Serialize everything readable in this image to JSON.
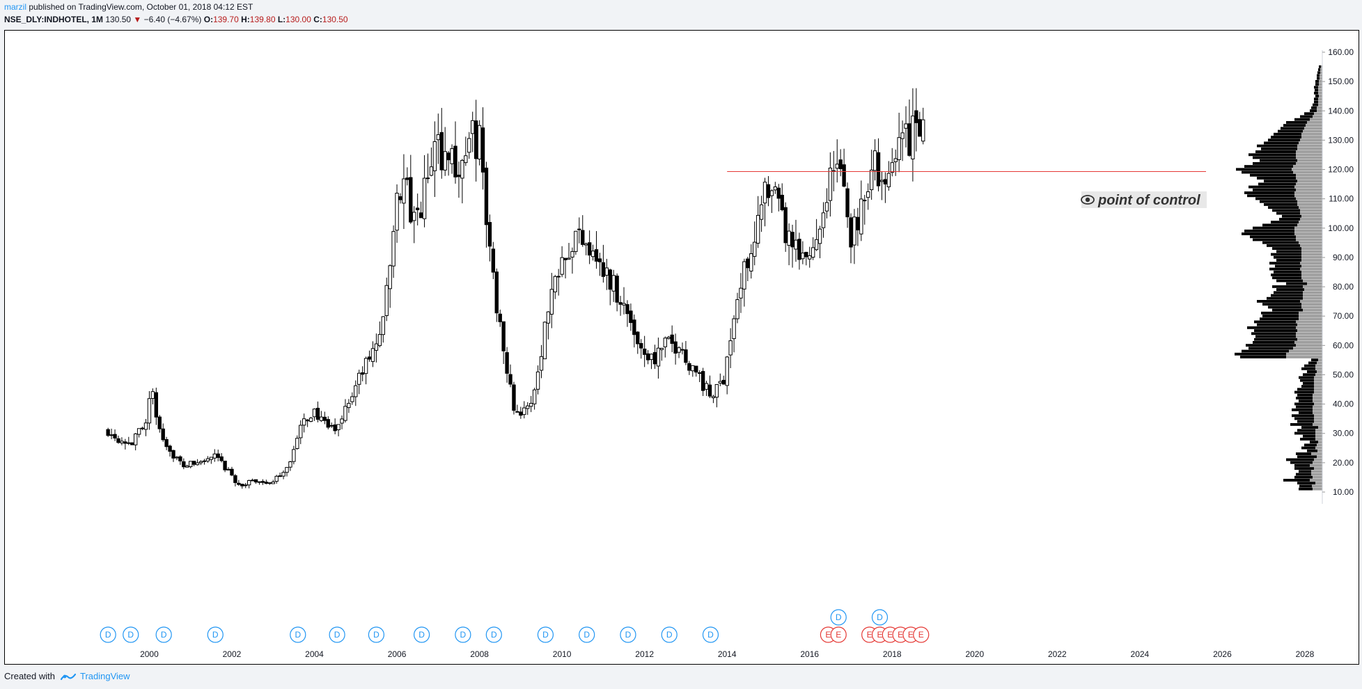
{
  "header": {
    "author": "marzil",
    "published_text": " published on TradingView.com, October 01, 2018 04:12 EST",
    "symbol": "NSE_DLY:INDHOTEL, 1M",
    "last": "130.50",
    "arrow": "▼",
    "change": "−6.40 (−4.67%)",
    "o_label": "O:",
    "o_value": "139.70",
    "h_label": "H:",
    "h_value": "139.80",
    "l_label": "L:",
    "l_value": "130.00",
    "c_label": "C:",
    "c_value": "130.50"
  },
  "footer": {
    "created_with": "Created with",
    "brand": "TradingView"
  },
  "annotation": {
    "text": "point of control",
    "price": 119.3,
    "icon": "eye-icon"
  },
  "colors": {
    "candle": "#000000",
    "poc_line": "#e53935",
    "dividend": "#2196f3",
    "earnings": "#e53935",
    "vp_up": "#000000",
    "vp_total": "#9e9e9e",
    "accent": "#2196f3"
  },
  "chart_data": {
    "type": "candlestick",
    "symbol": "NSE_DLY:INDHOTEL",
    "timeframe": "1M",
    "ylim": [
      8,
      165
    ],
    "y_ticks": [
      "10.00",
      "20.00",
      "30.00",
      "40.00",
      "50.00",
      "60.00",
      "70.00",
      "80.00",
      "90.00",
      "100.00",
      "110.00",
      "120.00",
      "130.00",
      "140.00",
      "150.00",
      "160.00"
    ],
    "x_ticks": [
      "2000",
      "2002",
      "2004",
      "2006",
      "2008",
      "2010",
      "2012",
      "2014",
      "2016",
      "2018",
      "2020",
      "2022",
      "2024",
      "2026",
      "2028"
    ],
    "x_start": 1996.5,
    "x_end": 2029.3,
    "grid": false,
    "anchors": [
      [
        1999.0,
        31
      ],
      [
        1999.3,
        28
      ],
      [
        1999.6,
        27
      ],
      [
        1999.9,
        34
      ],
      [
        2000.05,
        45
      ],
      [
        2000.2,
        33
      ],
      [
        2000.5,
        24
      ],
      [
        2000.8,
        19
      ],
      [
        2001.2,
        20
      ],
      [
        2001.6,
        22
      ],
      [
        2001.85,
        18
      ],
      [
        2002.2,
        12
      ],
      [
        2002.6,
        14
      ],
      [
        2003.0,
        13
      ],
      [
        2003.4,
        20
      ],
      [
        2003.7,
        33
      ],
      [
        2004.0,
        38
      ],
      [
        2004.2,
        33
      ],
      [
        2004.5,
        31
      ],
      [
        2004.8,
        40
      ],
      [
        2005.2,
        52
      ],
      [
        2005.5,
        60
      ],
      [
        2005.8,
        80
      ],
      [
        2006.0,
        113
      ],
      [
        2006.2,
        115
      ],
      [
        2006.4,
        100
      ],
      [
        2006.6,
        108
      ],
      [
        2006.9,
        127
      ],
      [
        2007.2,
        126
      ],
      [
        2007.5,
        120
      ],
      [
        2007.8,
        130
      ],
      [
        2008.0,
        130
      ],
      [
        2008.15,
        105
      ],
      [
        2008.4,
        75
      ],
      [
        2008.6,
        60
      ],
      [
        2008.8,
        40
      ],
      [
        2009.0,
        37
      ],
      [
        2009.2,
        38
      ],
      [
        2009.4,
        50
      ],
      [
        2009.6,
        68
      ],
      [
        2009.8,
        82
      ],
      [
        2010.0,
        93
      ],
      [
        2010.2,
        95
      ],
      [
        2010.5,
        98
      ],
      [
        2010.8,
        93
      ],
      [
        2011.0,
        85
      ],
      [
        2011.3,
        80
      ],
      [
        2011.6,
        70
      ],
      [
        2011.9,
        60
      ],
      [
        2012.2,
        55
      ],
      [
        2012.5,
        60
      ],
      [
        2012.8,
        60
      ],
      [
        2013.0,
        56
      ],
      [
        2013.3,
        50
      ],
      [
        2013.6,
        42
      ],
      [
        2013.9,
        48
      ],
      [
        2014.1,
        65
      ],
      [
        2014.3,
        78
      ],
      [
        2014.6,
        96
      ],
      [
        2014.9,
        110
      ],
      [
        2015.2,
        108
      ],
      [
        2015.5,
        95
      ],
      [
        2015.8,
        88
      ],
      [
        2016.0,
        90
      ],
      [
        2016.2,
        100
      ],
      [
        2016.4,
        112
      ],
      [
        2016.6,
        122
      ],
      [
        2016.8,
        115
      ],
      [
        2017.0,
        98
      ],
      [
        2017.2,
        105
      ],
      [
        2017.4,
        118
      ],
      [
        2017.6,
        122
      ],
      [
        2017.8,
        110
      ],
      [
        2018.0,
        120
      ],
      [
        2018.15,
        138
      ],
      [
        2018.3,
        128
      ],
      [
        2018.5,
        135
      ],
      [
        2018.7,
        131
      ]
    ],
    "vp_rows": [
      [
        11,
        20,
        34
      ],
      [
        12,
        18,
        33
      ],
      [
        13,
        26,
        36
      ],
      [
        14,
        38,
        56
      ],
      [
        15,
        26,
        40
      ],
      [
        16,
        22,
        38
      ],
      [
        17,
        18,
        34
      ],
      [
        18,
        28,
        40
      ],
      [
        19,
        22,
        40
      ],
      [
        20,
        32,
        46
      ],
      [
        21,
        40,
        52
      ],
      [
        22,
        28,
        36
      ],
      [
        23,
        22,
        38
      ],
      [
        24,
        15,
        22
      ],
      [
        25,
        20,
        30
      ],
      [
        26,
        18,
        26
      ],
      [
        27,
        12,
        18
      ],
      [
        28,
        22,
        32
      ],
      [
        29,
        18,
        28
      ],
      [
        30,
        30,
        40
      ],
      [
        31,
        26,
        36
      ],
      [
        32,
        24,
        30
      ],
      [
        33,
        32,
        46
      ],
      [
        34,
        24,
        36
      ],
      [
        35,
        28,
        40
      ],
      [
        36,
        32,
        44
      ],
      [
        37,
        20,
        34
      ],
      [
        38,
        30,
        44
      ],
      [
        39,
        24,
        38
      ],
      [
        40,
        28,
        40
      ],
      [
        41,
        20,
        34
      ],
      [
        42,
        24,
        38
      ],
      [
        43,
        22,
        36
      ],
      [
        44,
        28,
        40
      ],
      [
        45,
        24,
        36
      ],
      [
        46,
        18,
        30
      ],
      [
        47,
        16,
        28
      ],
      [
        48,
        20,
        32
      ],
      [
        49,
        22,
        34
      ],
      [
        50,
        18,
        28
      ],
      [
        51,
        14,
        22
      ],
      [
        52,
        20,
        30
      ],
      [
        53,
        16,
        26
      ],
      [
        54,
        12,
        20
      ],
      [
        55,
        10,
        16
      ],
      [
        56,
        66,
        118
      ],
      [
        57,
        74,
        126
      ],
      [
        58,
        68,
        116
      ],
      [
        59,
        64,
        106
      ],
      [
        60,
        72,
        110
      ],
      [
        61,
        60,
        100
      ],
      [
        62,
        62,
        98
      ],
      [
        63,
        58,
        96
      ],
      [
        64,
        64,
        102
      ],
      [
        65,
        62,
        98
      ],
      [
        66,
        70,
        108
      ],
      [
        67,
        58,
        94
      ],
      [
        68,
        60,
        98
      ],
      [
        69,
        56,
        90
      ],
      [
        70,
        52,
        86
      ],
      [
        71,
        54,
        88
      ],
      [
        72,
        44,
        72
      ],
      [
        73,
        48,
        78
      ],
      [
        74,
        56,
        86
      ],
      [
        75,
        62,
        94
      ],
      [
        76,
        52,
        80
      ],
      [
        77,
        46,
        74
      ],
      [
        78,
        42,
        70
      ],
      [
        79,
        40,
        66
      ],
      [
        80,
        44,
        72
      ],
      [
        81,
        30,
        52
      ],
      [
        82,
        38,
        66
      ],
      [
        83,
        42,
        72
      ],
      [
        84,
        44,
        74
      ],
      [
        85,
        40,
        70
      ],
      [
        86,
        44,
        76
      ],
      [
        87,
        38,
        68
      ],
      [
        88,
        44,
        76
      ],
      [
        89,
        36,
        66
      ],
      [
        90,
        40,
        70
      ],
      [
        91,
        44,
        74
      ],
      [
        92,
        36,
        66
      ],
      [
        93,
        42,
        72
      ],
      [
        94,
        48,
        80
      ],
      [
        95,
        52,
        86
      ],
      [
        96,
        62,
        100
      ],
      [
        97,
        66,
        104
      ],
      [
        98,
        76,
        116
      ],
      [
        99,
        72,
        112
      ],
      [
        100,
        60,
        100
      ],
      [
        101,
        50,
        86
      ],
      [
        102,
        40,
        74
      ],
      [
        103,
        30,
        62
      ],
      [
        104,
        28,
        58
      ],
      [
        105,
        34,
        66
      ],
      [
        106,
        40,
        72
      ],
      [
        107,
        44,
        78
      ],
      [
        108,
        48,
        84
      ],
      [
        109,
        54,
        90
      ],
      [
        110,
        58,
        96
      ],
      [
        111,
        68,
        108
      ],
      [
        112,
        72,
        112
      ],
      [
        113,
        62,
        100
      ],
      [
        114,
        66,
        106
      ],
      [
        115,
        54,
        92
      ],
      [
        116,
        48,
        84
      ],
      [
        117,
        56,
        94
      ],
      [
        118,
        66,
        104
      ],
      [
        119,
        74,
        116
      ],
      [
        120,
        80,
        124
      ],
      [
        121,
        70,
        112
      ],
      [
        122,
        62,
        100
      ],
      [
        123,
        54,
        90
      ],
      [
        124,
        62,
        100
      ],
      [
        125,
        68,
        106
      ],
      [
        126,
        58,
        96
      ],
      [
        127,
        52,
        88
      ],
      [
        128,
        58,
        94
      ],
      [
        129,
        50,
        84
      ],
      [
        130,
        46,
        78
      ],
      [
        131,
        44,
        74
      ],
      [
        132,
        40,
        70
      ],
      [
        133,
        36,
        64
      ],
      [
        134,
        34,
        60
      ],
      [
        135,
        32,
        56
      ],
      [
        136,
        30,
        52
      ],
      [
        137,
        22,
        40
      ],
      [
        138,
        18,
        32
      ],
      [
        139,
        14,
        26
      ],
      [
        140,
        10,
        18
      ],
      [
        141,
        8,
        16
      ],
      [
        142,
        8,
        14
      ],
      [
        143,
        6,
        12
      ],
      [
        144,
        6,
        12
      ],
      [
        145,
        5,
        10
      ],
      [
        146,
        6,
        12
      ],
      [
        147,
        5,
        11
      ],
      [
        148,
        6,
        12
      ],
      [
        149,
        5,
        10
      ],
      [
        150,
        5,
        10
      ],
      [
        151,
        4,
        8
      ],
      [
        152,
        4,
        8
      ],
      [
        153,
        4,
        7
      ],
      [
        154,
        3,
        6
      ],
      [
        155,
        3,
        5
      ]
    ],
    "events_dividend": [
      1999.0,
      1999.55,
      2000.35,
      2001.6,
      2003.6,
      2004.55,
      2005.5,
      2006.6,
      2007.6,
      2008.35,
      2009.6,
      2010.6,
      2011.6,
      2012.6,
      2013.6
    ],
    "events_dividend_upper": [
      2016.7,
      2017.7
    ],
    "events_earnings": [
      2016.45,
      2016.7,
      2017.45,
      2017.7,
      2017.95,
      2018.2,
      2018.45,
      2018.7
    ]
  }
}
